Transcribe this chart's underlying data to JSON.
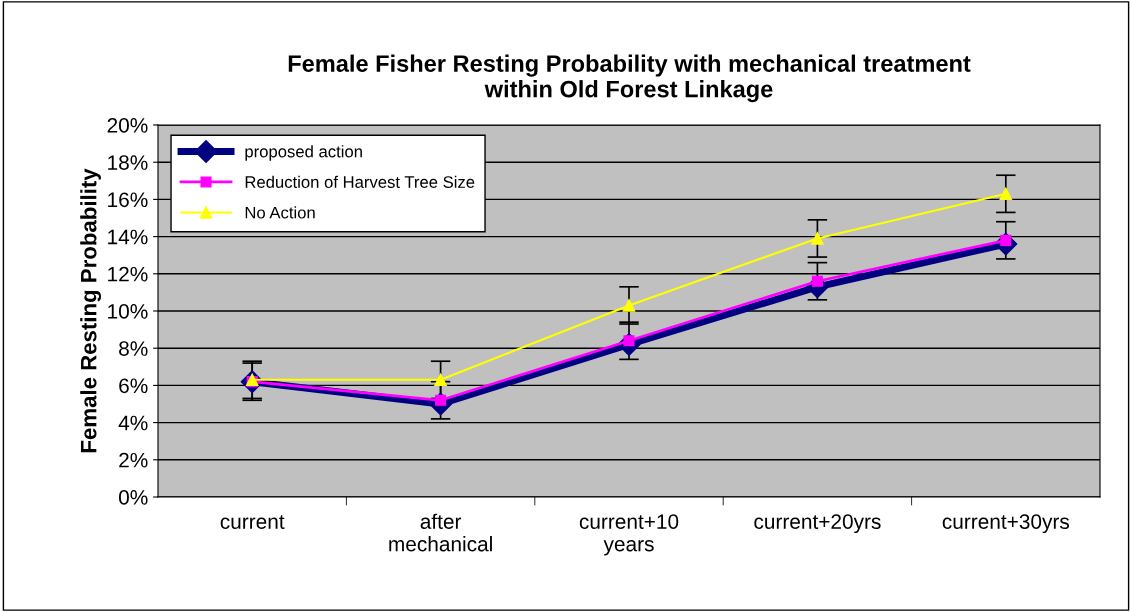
{
  "chart_data": {
    "type": "line",
    "title": "Female Fisher Resting Probability with mechanical treatment\nwithin Old Forest Linkage",
    "ylabel": "Female Resting Probability",
    "categories": [
      "current",
      "after\nmechanical",
      "current+10\nyears",
      "current+20yrs",
      "current+30yrs"
    ],
    "series": [
      {
        "name": "proposed action",
        "color": "#000080",
        "values": [
          6.2,
          5.0,
          8.2,
          11.3,
          13.6
        ],
        "marker": "diamond"
      },
      {
        "name": "Reduction of Harvest Tree Size",
        "color": "#ff00ff",
        "values": [
          6.2,
          5.2,
          8.4,
          11.6,
          13.8
        ],
        "marker": "square",
        "errors": [
          1,
          1,
          1,
          1,
          1
        ]
      },
      {
        "name": "No Action",
        "color": "#ffff00",
        "values": [
          6.3,
          6.3,
          10.3,
          13.9,
          16.3
        ],
        "marker": "triangle",
        "errors": [
          1,
          1,
          1,
          1,
          1
        ]
      }
    ],
    "ylim": [
      0,
      20
    ],
    "yticks": [
      {
        "value": 0,
        "label": "0%"
      },
      {
        "value": 2,
        "label": "2%"
      },
      {
        "value": 4,
        "label": "4%"
      },
      {
        "value": 6,
        "label": "6%"
      },
      {
        "value": 8,
        "label": "8%"
      },
      {
        "value": 10,
        "label": "10%"
      },
      {
        "value": 12,
        "label": "12%"
      },
      {
        "value": 14,
        "label": "14%"
      },
      {
        "value": 16,
        "label": "16%"
      },
      {
        "value": 18,
        "label": "18%"
      },
      {
        "value": 20,
        "label": "20%"
      }
    ],
    "grid": "y",
    "legend": "top left"
  }
}
